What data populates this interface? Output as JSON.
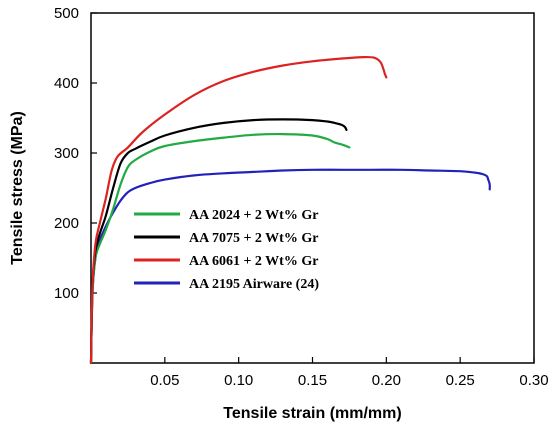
{
  "chart_data": {
    "type": "line",
    "title": "",
    "xlabel": "Tensile strain (mm/mm)",
    "ylabel": "Tensile stress (MPa)",
    "xlim": [
      0,
      0.3
    ],
    "ylim": [
      0,
      500
    ],
    "xticks": [
      0.05,
      0.1,
      0.15,
      0.2,
      0.25,
      0.3
    ],
    "xtick_labels": [
      "0.05",
      "0.10",
      "0.15",
      "0.20",
      "0.25",
      "0.30"
    ],
    "yticks": [
      100,
      200,
      300,
      400,
      500
    ],
    "ytick_labels": [
      "100",
      "200",
      "300",
      "400",
      "500"
    ],
    "grid": false,
    "legend_position": "center",
    "series": [
      {
        "name": "AA 2024 + 2 Wt% Gr",
        "color": "#22aa44",
        "x": [
          0,
          0.001,
          0.003,
          0.006,
          0.01,
          0.015,
          0.02,
          0.025,
          0.03,
          0.04,
          0.05,
          0.07,
          0.09,
          0.11,
          0.13,
          0.15,
          0.16,
          0.165,
          0.17,
          0.175
        ],
        "y": [
          0,
          100,
          150,
          170,
          190,
          220,
          255,
          280,
          290,
          302,
          310,
          317,
          322,
          326,
          327,
          325,
          320,
          315,
          312,
          308
        ]
      },
      {
        "name": "AA 7075 + 2 Wt% Gr",
        "color": "#000000",
        "x": [
          0,
          0.001,
          0.003,
          0.006,
          0.01,
          0.015,
          0.02,
          0.025,
          0.03,
          0.04,
          0.05,
          0.07,
          0.09,
          0.11,
          0.13,
          0.15,
          0.16,
          0.165,
          0.17,
          0.172,
          0.173
        ],
        "y": [
          0,
          110,
          160,
          185,
          210,
          250,
          285,
          300,
          306,
          316,
          325,
          336,
          343,
          347,
          348,
          347,
          345,
          343,
          340,
          337,
          333
        ]
      },
      {
        "name": "AA 6061 + 2 Wt% Gr",
        "color": "#dd2222",
        "x": [
          0,
          0.001,
          0.003,
          0.006,
          0.01,
          0.014,
          0.018,
          0.025,
          0.035,
          0.05,
          0.07,
          0.09,
          0.11,
          0.13,
          0.15,
          0.17,
          0.185,
          0.192,
          0.196,
          0.198,
          0.199,
          0.2
        ],
        "y": [
          0,
          110,
          170,
          200,
          235,
          275,
          295,
          308,
          330,
          355,
          383,
          403,
          416,
          425,
          431,
          435,
          437,
          436,
          430,
          420,
          413,
          408
        ]
      },
      {
        "name": "AA 2195 Airware (24)",
        "color": "#2222bb",
        "x": [
          0,
          0.001,
          0.003,
          0.006,
          0.01,
          0.015,
          0.02,
          0.025,
          0.03,
          0.04,
          0.05,
          0.07,
          0.09,
          0.11,
          0.13,
          0.15,
          0.17,
          0.19,
          0.21,
          0.23,
          0.25,
          0.26,
          0.265,
          0.268,
          0.269,
          0.27,
          0.27
        ],
        "y": [
          0,
          100,
          150,
          175,
          195,
          215,
          232,
          244,
          250,
          257,
          262,
          268,
          271,
          273,
          275,
          276,
          276,
          276,
          276,
          275,
          274,
          272,
          270,
          267,
          262,
          255,
          248
        ]
      }
    ]
  }
}
